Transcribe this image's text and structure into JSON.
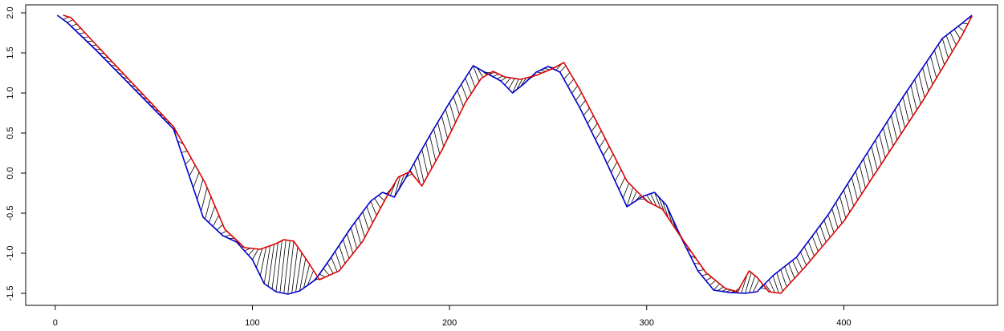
{
  "chart_data": {
    "type": "line",
    "title": "",
    "xlabel": "",
    "ylabel": "",
    "xlim": [
      -15,
      478
    ],
    "ylim": [
      -1.65,
      2.1
    ],
    "x_ticks": [
      0,
      100,
      200,
      300,
      400
    ],
    "x_tick_labels": [
      "0",
      "100",
      "200",
      "300",
      "400"
    ],
    "y_ticks": [
      -1.5,
      -1.0,
      -0.5,
      0.0,
      0.5,
      1.0,
      1.5,
      2.0
    ],
    "y_tick_labels": [
      "-1.5",
      "-1.0",
      "-0.5",
      "0.0",
      "0.5",
      "1.0",
      "1.5",
      "2.0"
    ],
    "grid": false,
    "colors": {
      "series_1": "#0000cc",
      "series_2": "#dd0000",
      "alignment": "#000000"
    },
    "series": [
      {
        "x": [
          1,
          6,
          20,
          40,
          60,
          75,
          85,
          92,
          100,
          106,
          112,
          118,
          124,
          132,
          140,
          150,
          160,
          166,
          172,
          178,
          190,
          200,
          212,
          220,
          226,
          232,
          238,
          244,
          250,
          256,
          266,
          278,
          290,
          298,
          304,
          310,
          318,
          326,
          334,
          342,
          350,
          356,
          364,
          376,
          392,
          410,
          430,
          450,
          460,
          465
        ],
        "y": [
          1.97,
          1.88,
          1.55,
          1.05,
          0.55,
          -0.55,
          -0.78,
          -0.86,
          -1.08,
          -1.38,
          -1.48,
          -1.51,
          -1.47,
          -1.33,
          -1.05,
          -0.68,
          -0.35,
          -0.24,
          -0.3,
          -0.05,
          0.47,
          0.88,
          1.34,
          1.23,
          1.15,
          1.0,
          1.12,
          1.26,
          1.33,
          1.26,
          0.82,
          0.22,
          -0.42,
          -0.29,
          -0.24,
          -0.4,
          -0.83,
          -1.22,
          -1.46,
          -1.49,
          -1.5,
          -1.48,
          -1.28,
          -1.05,
          -0.52,
          0.18,
          0.95,
          1.68,
          1.87,
          1.97
        ]
      },
      {
        "x": [
          4,
          8,
          20,
          40,
          60,
          76,
          86,
          96,
          104,
          112,
          116,
          121,
          128,
          134,
          144,
          156,
          168,
          174,
          180,
          186,
          196,
          208,
          216,
          222,
          228,
          236,
          244,
          252,
          258,
          266,
          278,
          290,
          300,
          308,
          318,
          330,
          340,
          346,
          352,
          356,
          362,
          368,
          380,
          400,
          420,
          440,
          460,
          465
        ],
        "y": [
          1.97,
          1.94,
          1.62,
          1.1,
          0.58,
          -0.12,
          -0.7,
          -0.93,
          -0.95,
          -0.88,
          -0.83,
          -0.85,
          -1.1,
          -1.33,
          -1.22,
          -0.85,
          -0.3,
          -0.05,
          0.02,
          -0.16,
          0.28,
          0.88,
          1.18,
          1.27,
          1.2,
          1.17,
          1.22,
          1.3,
          1.38,
          1.05,
          0.48,
          -0.1,
          -0.35,
          -0.45,
          -0.82,
          -1.24,
          -1.44,
          -1.48,
          -1.22,
          -1.3,
          -1.48,
          -1.5,
          -1.18,
          -0.6,
          0.15,
          0.9,
          1.72,
          1.96
        ]
      }
    ]
  }
}
